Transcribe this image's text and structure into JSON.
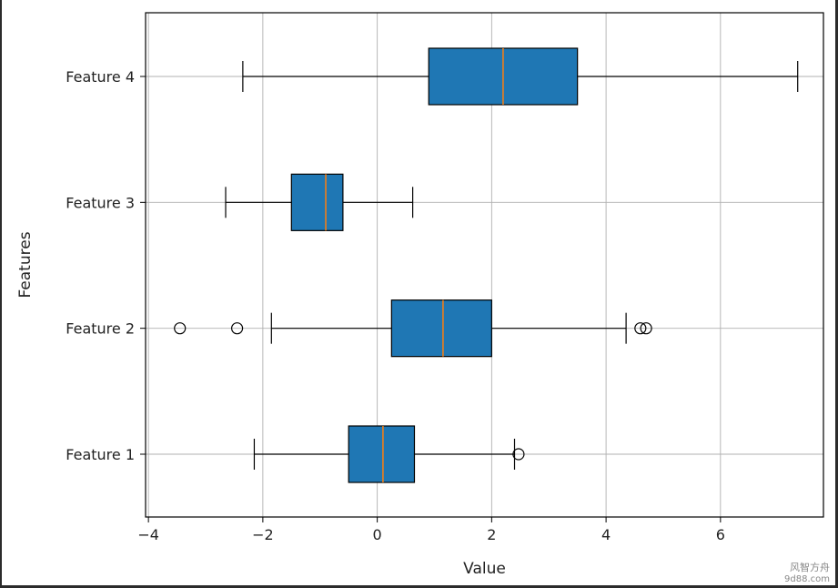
{
  "chart_data": {
    "type": "boxplot",
    "orientation": "horizontal",
    "xlabel": "Value",
    "ylabel": "Features",
    "xlim": [
      -4.05,
      7.8
    ],
    "xticks": [
      -4,
      -2,
      0,
      2,
      4,
      6
    ],
    "xtick_labels": [
      "−4",
      "−2",
      "0",
      "2",
      "4",
      "6"
    ],
    "grid": true,
    "box_color": "#1f77b4",
    "median_color": "#ff7f0e",
    "categories": [
      "Feature 1",
      "Feature 2",
      "Feature 3",
      "Feature 4"
    ],
    "boxes": [
      {
        "name": "Feature 1",
        "whisker_low": -2.15,
        "q1": -0.5,
        "median": 0.1,
        "q3": 0.65,
        "whisker_high": 2.4,
        "outliers": [
          2.47
        ]
      },
      {
        "name": "Feature 2",
        "whisker_low": -1.85,
        "q1": 0.25,
        "median": 1.15,
        "q3": 2.0,
        "whisker_high": 4.35,
        "outliers": [
          -3.45,
          -2.45,
          4.6,
          4.7
        ]
      },
      {
        "name": "Feature 3",
        "whisker_low": -2.65,
        "q1": -1.5,
        "median": -0.9,
        "q3": -0.6,
        "whisker_high": 0.62,
        "outliers": []
      },
      {
        "name": "Feature 4",
        "whisker_low": -2.35,
        "q1": 0.9,
        "median": 2.2,
        "q3": 3.5,
        "whisker_high": 7.35,
        "outliers": []
      }
    ]
  },
  "watermark": {
    "line1": "风智方舟",
    "line2": "9d88.com"
  }
}
